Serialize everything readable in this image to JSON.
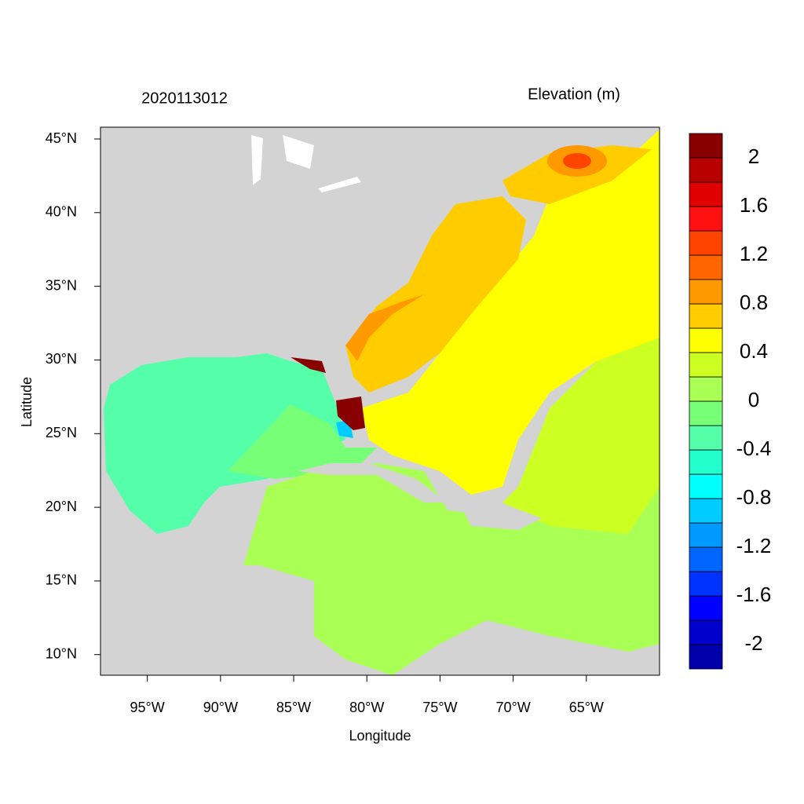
{
  "map": {
    "title_left": "2020113012",
    "title_right": "Elevation (m)",
    "xlabel": "Longitude",
    "ylabel": "Latitude",
    "xlim": [
      -98.2,
      -60
    ],
    "ylim": [
      8.6,
      45.8
    ],
    "xticks": [
      {
        "value": -95,
        "label": "95°W"
      },
      {
        "value": -90,
        "label": "90°W"
      },
      {
        "value": -85,
        "label": "85°W"
      },
      {
        "value": -80,
        "label": "80°W"
      },
      {
        "value": -75,
        "label": "75°W"
      },
      {
        "value": -70,
        "label": "70°W"
      },
      {
        "value": -65,
        "label": "65°W"
      }
    ],
    "yticks": [
      {
        "value": 10,
        "label": "10°N"
      },
      {
        "value": 15,
        "label": "15°N"
      },
      {
        "value": 20,
        "label": "20°N"
      },
      {
        "value": 25,
        "label": "25°N"
      },
      {
        "value": 30,
        "label": "30°N"
      },
      {
        "value": 35,
        "label": "35°N"
      },
      {
        "value": 40,
        "label": "40°N"
      },
      {
        "value": 45,
        "label": "45°N"
      }
    ],
    "colorbar": {
      "levels": [
        -2.2,
        -2,
        -1.8,
        -1.6,
        -1.4,
        -1.2,
        -1,
        -0.8,
        -0.6,
        -0.4,
        -0.2,
        0,
        0.2,
        0.4,
        0.6,
        0.8,
        1,
        1.2,
        1.4,
        1.6,
        1.8,
        2,
        2.2
      ],
      "colors": [
        "#0000aa",
        "#0000cc",
        "#0000ff",
        "#0033ff",
        "#0066ff",
        "#0099ff",
        "#00ccff",
        "#00ffff",
        "#22ffcc",
        "#55ffaa",
        "#77ff77",
        "#aaff55",
        "#ccff22",
        "#ffff00",
        "#ffcc00",
        "#ff9900",
        "#ff6600",
        "#ff4400",
        "#ff1111",
        "#e00000",
        "#b80000",
        "#880000"
      ],
      "ticks": [
        -2,
        -1.6,
        -1.2,
        -0.8,
        -0.4,
        0,
        0.4,
        0.8,
        1.2,
        1.6,
        2
      ]
    }
  }
}
